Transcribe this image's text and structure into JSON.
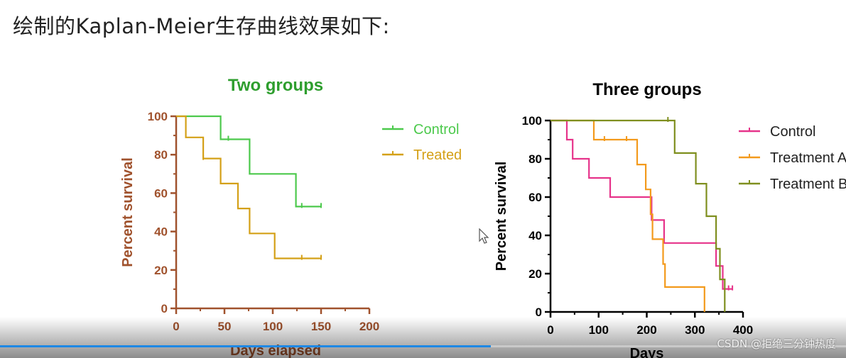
{
  "heading": "绘制的Kaplan-Meier生存曲线效果如下:",
  "watermark": "CSDN @拒绝三分钟热度",
  "progress": 0.58,
  "chart_data": [
    {
      "type": "line",
      "step": true,
      "title": "Two groups",
      "xlabel": "Days elapsed",
      "ylabel": "Percent survival",
      "xlim": [
        0,
        200
      ],
      "ylim": [
        0,
        100
      ],
      "xticks": [
        0,
        50,
        100,
        150,
        200
      ],
      "yticks": [
        0,
        20,
        40,
        60,
        80,
        100
      ],
      "title_color": "#2e9e2e",
      "axis_color": "#a0522d",
      "legend_position": "top-right",
      "series": [
        {
          "name": "Control",
          "color": "#4cc94c",
          "steps": [
            [
              0,
              100
            ],
            [
              46,
              100
            ],
            [
              46,
              88
            ],
            [
              76,
              88
            ],
            [
              76,
              70
            ],
            [
              124,
              70
            ],
            [
              124,
              53
            ],
            [
              150,
              53
            ]
          ],
          "censored": [
            [
              54,
              88
            ],
            [
              130,
              53
            ],
            [
              150,
              53
            ]
          ]
        },
        {
          "name": "Treated",
          "color": "#d4a017",
          "steps": [
            [
              0,
              100
            ],
            [
              10,
              100
            ],
            [
              10,
              89
            ],
            [
              28,
              89
            ],
            [
              28,
              78
            ],
            [
              46,
              78
            ],
            [
              46,
              65
            ],
            [
              64,
              65
            ],
            [
              64,
              52
            ],
            [
              76,
              52
            ],
            [
              76,
              39
            ],
            [
              102,
              39
            ],
            [
              102,
              26
            ],
            [
              150,
              26
            ]
          ],
          "censored": [
            [
              28,
              78
            ],
            [
              130,
              26
            ],
            [
              150,
              26
            ]
          ]
        }
      ]
    },
    {
      "type": "line",
      "step": true,
      "title": "Three groups",
      "xlabel": "Days",
      "ylabel": "Percent survival",
      "xlim": [
        0,
        400
      ],
      "ylim": [
        0,
        100
      ],
      "xticks": [
        0,
        100,
        200,
        300,
        400
      ],
      "yticks": [
        0,
        20,
        40,
        60,
        80,
        100
      ],
      "title_color": "#000000",
      "axis_color": "#000000",
      "legend_position": "top-right",
      "series": [
        {
          "name": "Control",
          "color": "#e6338a",
          "steps": [
            [
              0,
              100
            ],
            [
              34,
              100
            ],
            [
              34,
              90
            ],
            [
              46,
              90
            ],
            [
              46,
              80
            ],
            [
              80,
              80
            ],
            [
              80,
              70
            ],
            [
              124,
              70
            ],
            [
              124,
              60
            ],
            [
              210,
              60
            ],
            [
              210,
              48
            ],
            [
              236,
              48
            ],
            [
              236,
              36
            ],
            [
              344,
              36
            ],
            [
              344,
              24
            ],
            [
              358,
              24
            ],
            [
              358,
              12
            ],
            [
              378,
              12
            ]
          ],
          "censored": [
            [
              370,
              12
            ],
            [
              378,
              12
            ]
          ]
        },
        {
          "name": "Treatment A",
          "color": "#f39a1c",
          "steps": [
            [
              0,
              100
            ],
            [
              90,
              100
            ],
            [
              90,
              90
            ],
            [
              180,
              90
            ],
            [
              180,
              77
            ],
            [
              198,
              77
            ],
            [
              198,
              64
            ],
            [
              208,
              64
            ],
            [
              208,
              51
            ],
            [
              212,
              51
            ],
            [
              212,
              38
            ],
            [
              234,
              38
            ],
            [
              234,
              25
            ],
            [
              238,
              25
            ],
            [
              238,
              13
            ],
            [
              320,
              13
            ],
            [
              320,
              0
            ]
          ],
          "censored": [
            [
              112,
              90
            ],
            [
              158,
              90
            ]
          ]
        },
        {
          "name": "Treatment B",
          "color": "#7f8f1f",
          "steps": [
            [
              0,
              100
            ],
            [
              258,
              100
            ],
            [
              258,
              83
            ],
            [
              302,
              83
            ],
            [
              302,
              67
            ],
            [
              324,
              67
            ],
            [
              324,
              50
            ],
            [
              344,
              50
            ],
            [
              344,
              33
            ],
            [
              352,
              33
            ],
            [
              352,
              17
            ],
            [
              362,
              17
            ],
            [
              362,
              0
            ]
          ],
          "censored": [
            [
              244,
              100
            ]
          ]
        }
      ]
    }
  ]
}
